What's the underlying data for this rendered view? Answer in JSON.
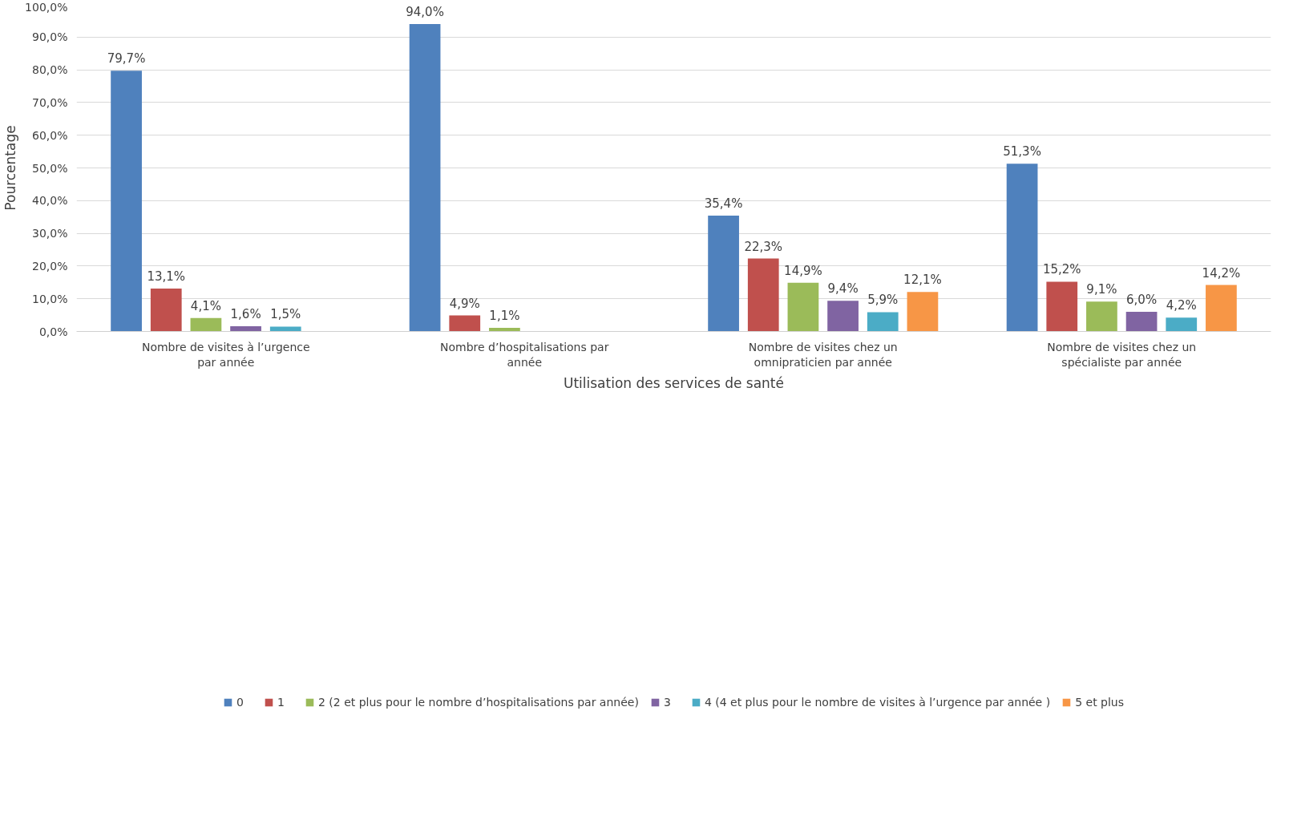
{
  "chart_data": {
    "type": "bar",
    "xlabel": "Utilisation des services de santé",
    "ylabel": "Pourcentage",
    "categories": [
      "Nombre de visites à l’urgence par année",
      "Nombre d’hospitalisations par année",
      "Nombre de visites chez un omnipraticien par année",
      "Nombre de visites chez un spécialiste par année"
    ],
    "series": [
      {
        "name": "0",
        "color": "#4f81bd",
        "values": [
          79.7,
          94.0,
          35.4,
          51.3
        ],
        "value_labels": [
          "79,7%",
          "94,0%",
          "35,4%",
          "51,3%"
        ]
      },
      {
        "name": "1",
        "color": "#c0504d",
        "values": [
          13.1,
          4.9,
          22.3,
          15.2
        ],
        "value_labels": [
          "13,1%",
          "4,9%",
          "22,3%",
          "15,2%"
        ]
      },
      {
        "name": "2 (2 et plus pour le nombre d’hospitalisations par année)",
        "color": "#9bbb59",
        "values": [
          4.1,
          1.1,
          14.9,
          9.1
        ],
        "value_labels": [
          "4,1%",
          "1,1%",
          "14,9%",
          "9,1%"
        ]
      },
      {
        "name": "3",
        "color": "#8064a2",
        "values": [
          1.6,
          null,
          9.4,
          6.0
        ],
        "value_labels": [
          "1,6%",
          null,
          "9,4%",
          "6,0%"
        ]
      },
      {
        "name": "4 (4 et plus pour le nombre de visites à l’urgence par année )",
        "color": "#4bacc6",
        "values": [
          1.5,
          null,
          5.9,
          4.2
        ],
        "value_labels": [
          "1,5%",
          null,
          "5,9%",
          "4,2%"
        ]
      },
      {
        "name": "5 et plus",
        "color": "#f79646",
        "values": [
          null,
          null,
          12.1,
          14.2
        ],
        "value_labels": [
          null,
          null,
          "12,1%",
          "14,2%"
        ]
      }
    ],
    "ylim": [
      0,
      100
    ],
    "yticks": [
      {
        "value": 0,
        "label": "0,0%"
      },
      {
        "value": 10,
        "label": "10,0%"
      },
      {
        "value": 20,
        "label": "20,0%"
      },
      {
        "value": 30,
        "label": "30,0%"
      },
      {
        "value": 40,
        "label": "40,0%"
      },
      {
        "value": 50,
        "label": "50,0%"
      },
      {
        "value": 60,
        "label": "60,0%"
      },
      {
        "value": 70,
        "label": "70,0%"
      },
      {
        "value": 80,
        "label": "80,0%"
      },
      {
        "value": 90,
        "label": "90,0%"
      },
      {
        "value": 100,
        "label": "100,0%"
      }
    ],
    "grid": "y",
    "legend": "bottom"
  }
}
